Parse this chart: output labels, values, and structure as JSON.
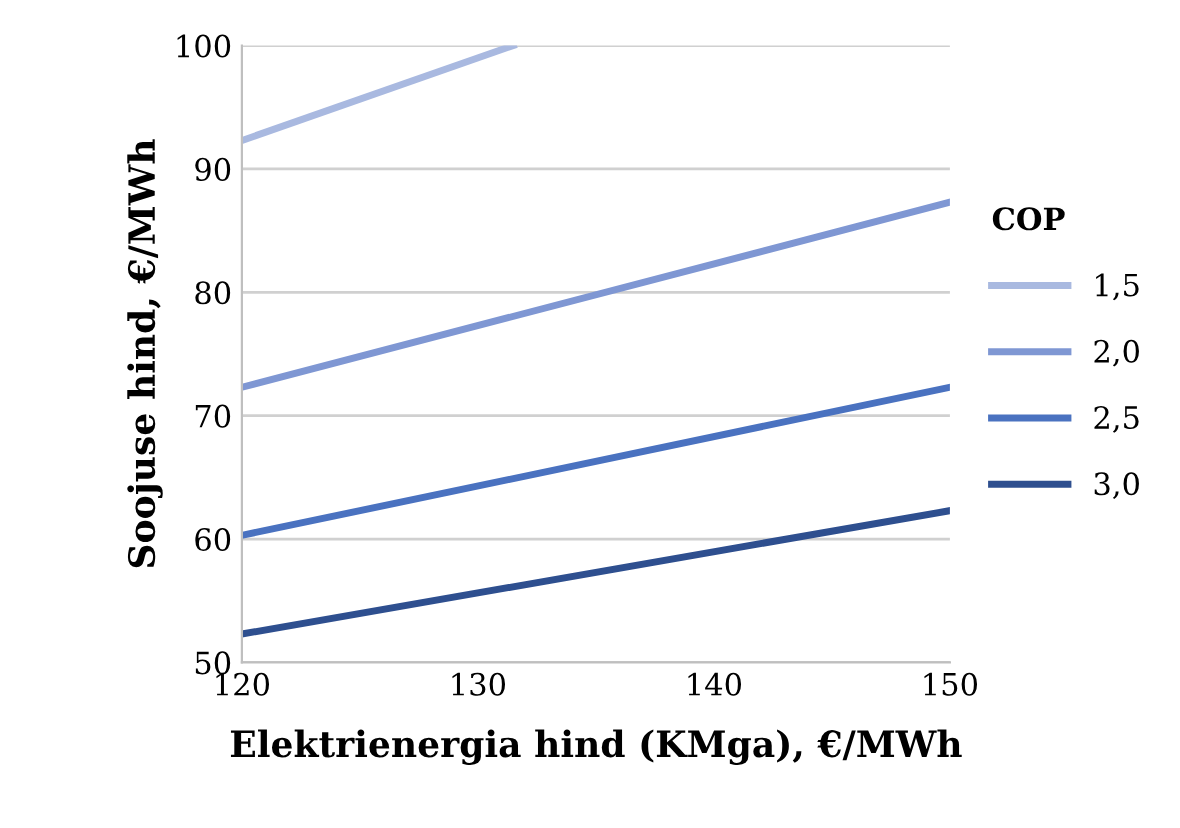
{
  "chart_data": {
    "type": "line",
    "xlabel": "Elektrienergia hind (KMga), €/MWh",
    "ylabel": "Soojuse hind, €/MWh",
    "legend_title": "COP",
    "series": [
      {
        "name": "1,5",
        "color": "#a9b9e0",
        "x": [
          120,
          131.5
        ],
        "values": [
          92.3,
          100
        ]
      },
      {
        "name": "2,0",
        "color": "#7f97d3",
        "x": [
          120,
          150
        ],
        "values": [
          72.3,
          87.3
        ]
      },
      {
        "name": "2,5",
        "color": "#4a72c0",
        "x": [
          120,
          150
        ],
        "values": [
          60.3,
          72.3
        ]
      },
      {
        "name": "3,0",
        "color": "#2e4f8f",
        "x": [
          120,
          150
        ],
        "values": [
          52.3,
          62.3
        ]
      }
    ],
    "xlim": [
      120,
      150
    ],
    "xticks": [
      120,
      130,
      140,
      150
    ],
    "ylim": [
      50,
      100
    ],
    "yticks": [
      50,
      60,
      70,
      80,
      90,
      100
    ],
    "grid": "y",
    "legend": "right",
    "marker": "none",
    "line_style": "solid"
  }
}
